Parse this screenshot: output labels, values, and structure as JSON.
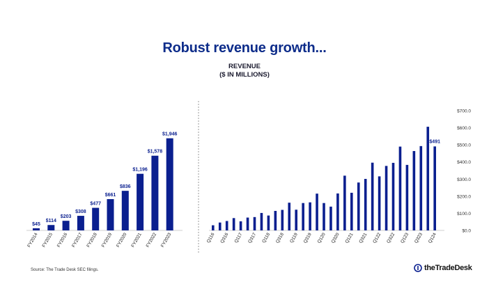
{
  "slide": {
    "title": "Robust revenue growth...",
    "subtitle_line1": "REVENUE",
    "subtitle_line2": "($ IN MILLIONS)",
    "source": "Source: The Trade Desk SEC filings.",
    "logo_text": "theTradeDesk"
  },
  "colors": {
    "bar": "#0a1f8f",
    "title": "#0d2c8a",
    "divider": "#9a9a9a"
  },
  "chart_data": [
    {
      "type": "bar",
      "categories": [
        "FY2014",
        "FY2015",
        "FY2016",
        "FY2017",
        "FY2018",
        "FY2019",
        "FY2020",
        "FY2021",
        "FY2022",
        "FY2023"
      ],
      "values": [
        45,
        114,
        203,
        308,
        477,
        661,
        836,
        1196,
        1578,
        1946
      ],
      "data_labels": [
        "$45",
        "$114",
        "$203",
        "$308",
        "$477",
        "$661",
        "$836",
        "$1,196",
        "$1,578",
        "$1,946"
      ],
      "ylim": [
        0,
        2000
      ]
    },
    {
      "type": "bar",
      "categories": [
        "Q116",
        "Q216",
        "Q316",
        "Q416",
        "Q117",
        "Q217",
        "Q317",
        "Q417",
        "Q118",
        "Q218",
        "Q318",
        "Q418",
        "Q119",
        "Q219",
        "Q319",
        "Q419",
        "Q120",
        "Q220",
        "Q320",
        "Q420",
        "Q121",
        "Q221",
        "Q321",
        "Q421",
        "Q122",
        "Q222",
        "Q322",
        "Q422",
        "Q123",
        "Q223",
        "Q323",
        "Q423",
        "Q124"
      ],
      "tick_labels": [
        "Q116",
        "Q316",
        "Q117",
        "Q317",
        "Q118",
        "Q318",
        "Q119",
        "Q319",
        "Q120",
        "Q320",
        "Q121",
        "Q321",
        "Q122",
        "Q322",
        "Q123",
        "Q323",
        "Q124"
      ],
      "values": [
        30,
        46,
        55,
        72,
        53,
        75,
        78,
        102,
        87,
        114,
        120,
        162,
        121,
        160,
        164,
        215,
        160,
        139,
        216,
        320,
        220,
        280,
        301,
        396,
        316,
        377,
        395,
        490,
        383,
        464,
        493,
        606,
        491
      ],
      "data_labels": [
        {
          "index": 32,
          "text": "$491"
        }
      ],
      "yticks": [
        0,
        100,
        200,
        300,
        400,
        500,
        600,
        700
      ],
      "ytick_labels": [
        "$0.0",
        "$100.0",
        "$200.0",
        "$300.0",
        "$400.0",
        "$500.0",
        "$600.0",
        "$700.0"
      ],
      "ylim": [
        0,
        700
      ],
      "yaxis_position": "right"
    }
  ]
}
